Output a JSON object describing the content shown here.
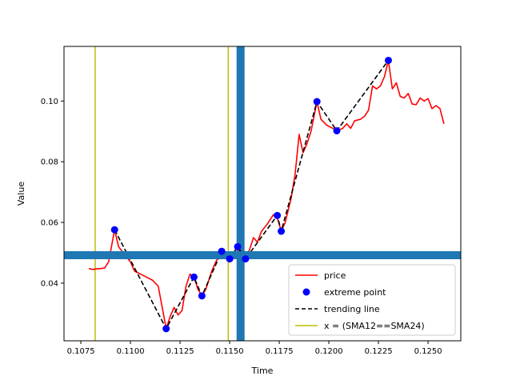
{
  "chart_data": {
    "type": "line",
    "title": "",
    "xlabel": "Time",
    "ylabel": "Value",
    "xlim": [
      0.10665,
      0.12665
    ],
    "ylim": [
      0.021,
      0.118
    ],
    "x_ticks": [
      0.1075,
      0.11,
      0.1125,
      0.115,
      0.1175,
      0.12,
      0.1225,
      0.125
    ],
    "x_tick_labels": [
      "0.1075",
      "0.1100",
      "0.1125",
      "0.1150",
      "0.1175",
      "0.1200",
      "0.1225",
      "0.1250"
    ],
    "y_ticks": [
      0.04,
      0.06,
      0.08,
      0.1
    ],
    "y_tick_labels": [
      "0.04",
      "0.06",
      "0.08",
      "0.10"
    ],
    "grid": false,
    "legend_position": "lower-right",
    "legend": [
      "price",
      "extreme point",
      "trending line",
      "x = (SMA12==SMA24)"
    ],
    "colors": {
      "price": "#ff0000",
      "extreme_point": "#0000ff",
      "trending_line": "#000000",
      "sma_cross": "#bfbf00",
      "thick_lines": "#1f77b4"
    },
    "series": [
      {
        "name": "price",
        "style": "solid",
        "points": [
          [
            0.1079,
            0.0448
          ],
          [
            0.1081,
            0.0445
          ],
          [
            0.1083,
            0.0447
          ],
          [
            0.1085,
            0.0448
          ],
          [
            0.1087,
            0.045
          ],
          [
            0.1089,
            0.047
          ],
          [
            0.1092,
            0.0576
          ],
          [
            0.1094,
            0.052
          ],
          [
            0.1097,
            0.0495
          ],
          [
            0.11,
            0.047
          ],
          [
            0.1102,
            0.044
          ],
          [
            0.1105,
            0.043
          ],
          [
            0.1108,
            0.042
          ],
          [
            0.1111,
            0.041
          ],
          [
            0.1114,
            0.039
          ],
          [
            0.1118,
            0.025
          ],
          [
            0.112,
            0.029
          ],
          [
            0.1122,
            0.032
          ],
          [
            0.1124,
            0.0295
          ],
          [
            0.1126,
            0.031
          ],
          [
            0.1128,
            0.039
          ],
          [
            0.113,
            0.043
          ],
          [
            0.1132,
            0.042
          ],
          [
            0.1134,
            0.038
          ],
          [
            0.1136,
            0.0358
          ],
          [
            0.1138,
            0.038
          ],
          [
            0.1141,
            0.044
          ],
          [
            0.1143,
            0.047
          ],
          [
            0.1146,
            0.0505
          ],
          [
            0.1148,
            0.049
          ],
          [
            0.115,
            0.048
          ],
          [
            0.1152,
            0.05
          ],
          [
            0.1154,
            0.052
          ],
          [
            0.1156,
            0.049
          ],
          [
            0.1158,
            0.048
          ],
          [
            0.116,
            0.051
          ],
          [
            0.1162,
            0.055
          ],
          [
            0.1164,
            0.0535
          ],
          [
            0.1166,
            0.057
          ],
          [
            0.1169,
            0.0595
          ],
          [
            0.1172,
            0.0625
          ],
          [
            0.1174,
            0.0615
          ],
          [
            0.1176,
            0.0571
          ],
          [
            0.1178,
            0.06
          ],
          [
            0.1181,
            0.068
          ],
          [
            0.1183,
            0.076
          ],
          [
            0.1185,
            0.089
          ],
          [
            0.1187,
            0.083
          ],
          [
            0.1189,
            0.086
          ],
          [
            0.1191,
            0.09
          ],
          [
            0.1194,
            0.0998
          ],
          [
            0.1196,
            0.094
          ],
          [
            0.1199,
            0.092
          ],
          [
            0.1202,
            0.091
          ],
          [
            0.1204,
            0.0902
          ],
          [
            0.1207,
            0.091
          ],
          [
            0.1209,
            0.0925
          ],
          [
            0.1211,
            0.091
          ],
          [
            0.1213,
            0.0935
          ],
          [
            0.1216,
            0.094
          ],
          [
            0.1218,
            0.095
          ],
          [
            0.122,
            0.097
          ],
          [
            0.1222,
            0.105
          ],
          [
            0.1224,
            0.104
          ],
          [
            0.1226,
            0.105
          ],
          [
            0.1228,
            0.108
          ],
          [
            0.123,
            0.1134
          ],
          [
            0.1232,
            0.104
          ],
          [
            0.1234,
            0.106
          ],
          [
            0.1236,
            0.1015
          ],
          [
            0.1238,
            0.101
          ],
          [
            0.124,
            0.1025
          ],
          [
            0.1242,
            0.099
          ],
          [
            0.1244,
            0.0988
          ],
          [
            0.1246,
            0.101
          ],
          [
            0.1248,
            0.1
          ],
          [
            0.125,
            0.1008
          ],
          [
            0.1252,
            0.0975
          ],
          [
            0.1254,
            0.0985
          ],
          [
            0.1256,
            0.0975
          ],
          [
            0.1258,
            0.0925
          ]
        ]
      },
      {
        "name": "extreme point",
        "style": "marker",
        "points": [
          [
            0.1092,
            0.0576
          ],
          [
            0.1118,
            0.025
          ],
          [
            0.1132,
            0.042
          ],
          [
            0.1136,
            0.0358
          ],
          [
            0.1146,
            0.0505
          ],
          [
            0.115,
            0.048
          ],
          [
            0.1154,
            0.052
          ],
          [
            0.1158,
            0.048
          ],
          [
            0.1174,
            0.0623
          ],
          [
            0.1176,
            0.0571
          ],
          [
            0.1194,
            0.0998
          ],
          [
            0.1204,
            0.0902
          ],
          [
            0.123,
            0.1134
          ]
        ]
      },
      {
        "name": "trending line",
        "style": "dashed",
        "points": [
          [
            0.1092,
            0.0576
          ],
          [
            0.1118,
            0.025
          ],
          [
            0.1132,
            0.042
          ],
          [
            0.1136,
            0.0358
          ],
          [
            0.1146,
            0.0505
          ],
          [
            0.115,
            0.048
          ],
          [
            0.1154,
            0.052
          ],
          [
            0.1158,
            0.048
          ],
          [
            0.1174,
            0.0623
          ],
          [
            0.1176,
            0.0571
          ],
          [
            0.1194,
            0.0998
          ],
          [
            0.1204,
            0.0902
          ],
          [
            0.123,
            0.1134
          ]
        ]
      }
    ],
    "vlines": [
      {
        "name": "x = (SMA12==SMA24)",
        "x": 0.10822,
        "style": "thin"
      },
      {
        "name": "x = (SMA12==SMA24)",
        "x": 0.11493,
        "style": "thin"
      },
      {
        "name": "",
        "x": 0.11555,
        "style": "thick"
      }
    ],
    "hlines": [
      {
        "name": "",
        "y": 0.0492,
        "style": "thick"
      }
    ]
  }
}
